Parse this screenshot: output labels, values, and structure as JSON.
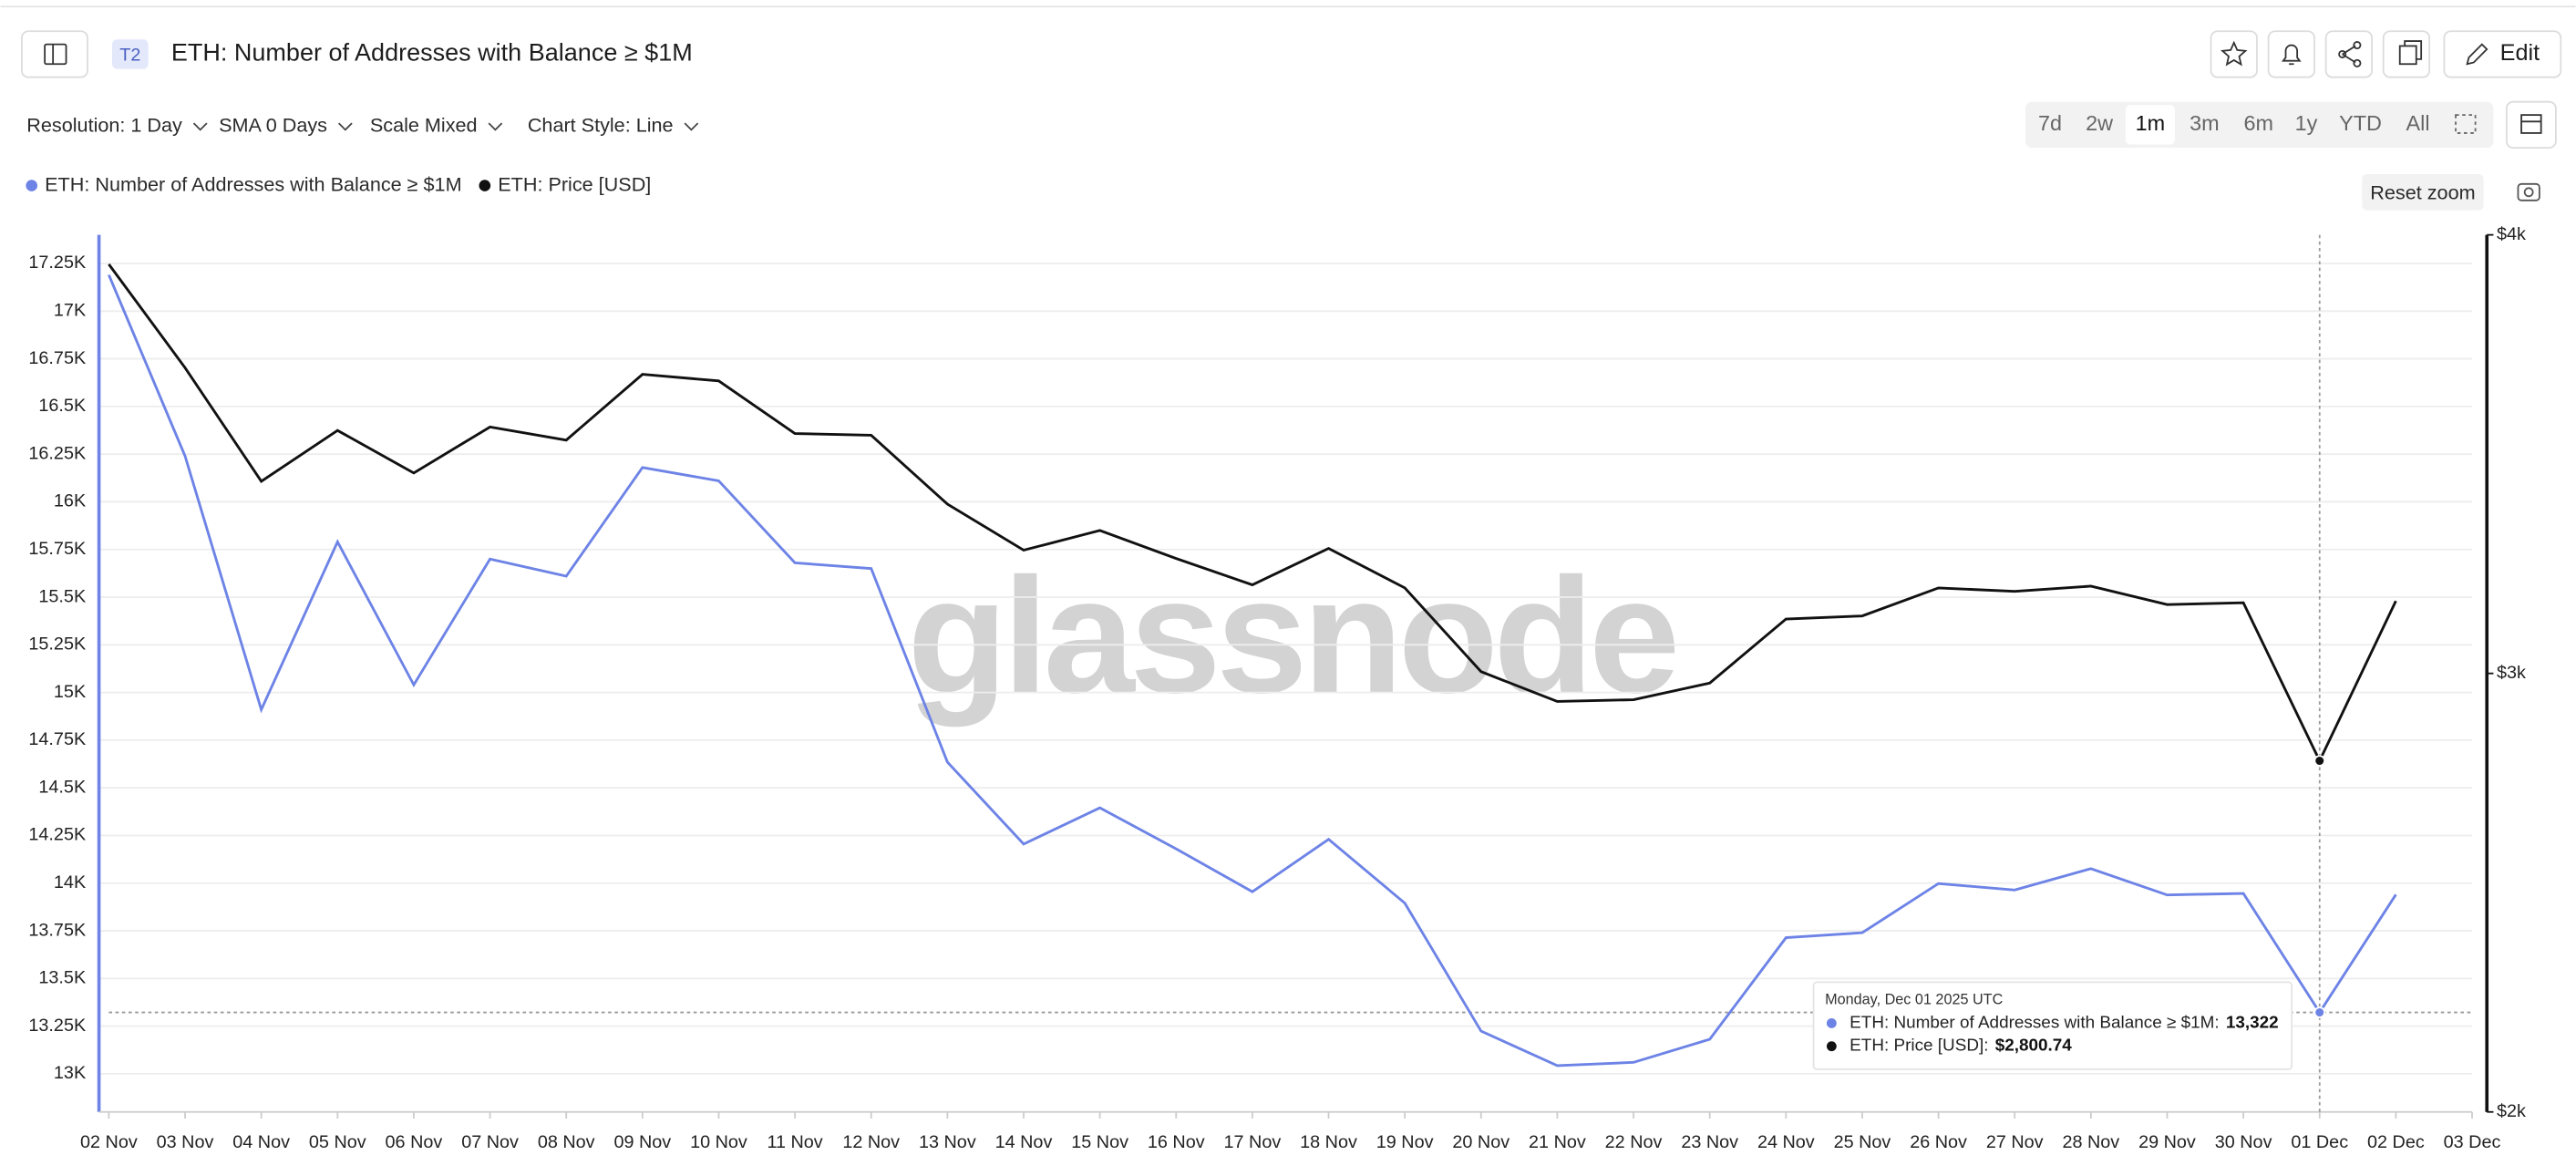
{
  "ui": {
    "badge": "T2",
    "title": "ETH: Number of Addresses with Balance ≥ $1M",
    "edit": "Edit",
    "controls": [
      "Resolution: 1 Day",
      "SMA 0 Days",
      "Scale Mixed",
      "Chart Style: Line"
    ],
    "ranges": [
      "7d",
      "2w",
      "1m",
      "3m",
      "6m",
      "1y",
      "YTD",
      "All"
    ],
    "active_range": "1m",
    "reset_zoom": "Reset zoom",
    "watermark": "glassnode"
  },
  "chart_data": {
    "type": "line",
    "categories": [
      "02 Nov",
      "03 Nov",
      "04 Nov",
      "05 Nov",
      "06 Nov",
      "07 Nov",
      "08 Nov",
      "09 Nov",
      "10 Nov",
      "11 Nov",
      "12 Nov",
      "13 Nov",
      "14 Nov",
      "15 Nov",
      "16 Nov",
      "17 Nov",
      "18 Nov",
      "19 Nov",
      "20 Nov",
      "21 Nov",
      "22 Nov",
      "23 Nov",
      "24 Nov",
      "25 Nov",
      "26 Nov",
      "27 Nov",
      "28 Nov",
      "29 Nov",
      "30 Nov",
      "01 Dec",
      "02 Dec",
      "03 Dec"
    ],
    "series": [
      {
        "name": "ETH: Number of Addresses with Balance ≥ $1M",
        "color": "#6d83e6",
        "values": [
          17190,
          16240,
          14910,
          15790,
          15040,
          15700,
          15610,
          16180,
          16110,
          15680,
          15650,
          14635,
          14205,
          14395,
          14180,
          13955,
          14230,
          13895,
          13224,
          13043,
          13060,
          13181,
          13714,
          13740,
          13998,
          13964,
          14076,
          13938,
          13946,
          13322,
          13940,
          null
        ]
      },
      {
        "name": "ETH: Price [USD]",
        "color": "#111111",
        "axis": "y2",
        "values": [
          3933,
          3697,
          3438,
          3554,
          3457,
          3562,
          3532,
          3682,
          3667,
          3547,
          3543,
          3386,
          3281,
          3326,
          3262,
          3202,
          3285,
          3195,
          3004,
          2936,
          2940,
          2978,
          3124,
          3131,
          3195,
          3187,
          3199,
          3157,
          3161,
          2800.74,
          3165,
          null
        ]
      }
    ],
    "ylim": [
      12800,
      17400
    ],
    "yticks": [
      {
        "value": 13000,
        "label": "13K"
      },
      {
        "value": 13250,
        "label": "13.25K"
      },
      {
        "value": 13500,
        "label": "13.5K"
      },
      {
        "value": 13750,
        "label": "13.75K"
      },
      {
        "value": 14000,
        "label": "14K"
      },
      {
        "value": 14250,
        "label": "14.25K"
      },
      {
        "value": 14500,
        "label": "14.5K"
      },
      {
        "value": 14750,
        "label": "14.75K"
      },
      {
        "value": 15000,
        "label": "15K"
      },
      {
        "value": 15250,
        "label": "15.25K"
      },
      {
        "value": 15500,
        "label": "15.5K"
      },
      {
        "value": 15750,
        "label": "15.75K"
      },
      {
        "value": 16000,
        "label": "16K"
      },
      {
        "value": 16250,
        "label": "16.25K"
      },
      {
        "value": 16500,
        "label": "16.5K"
      },
      {
        "value": 16750,
        "label": "16.75K"
      },
      {
        "value": 17000,
        "label": "17K"
      },
      {
        "value": 17250,
        "label": "17.25K"
      }
    ],
    "y2lim": [
      2000,
      4000
    ],
    "y2ticks": [
      {
        "value": 2000,
        "label": "$2k"
      },
      {
        "value": 3000,
        "label": "$3k"
      },
      {
        "value": 4000,
        "label": "$4k"
      }
    ],
    "grid": true,
    "legend": "top-left",
    "tooltip": {
      "title": "Monday, Dec 01 2025 UTC",
      "index": 29,
      "labels": [
        "ETH: Number of Addresses with Balance ≥ $1M:",
        "ETH: Price [USD]:"
      ],
      "values": [
        "13,322",
        "$2,800.74"
      ]
    }
  }
}
